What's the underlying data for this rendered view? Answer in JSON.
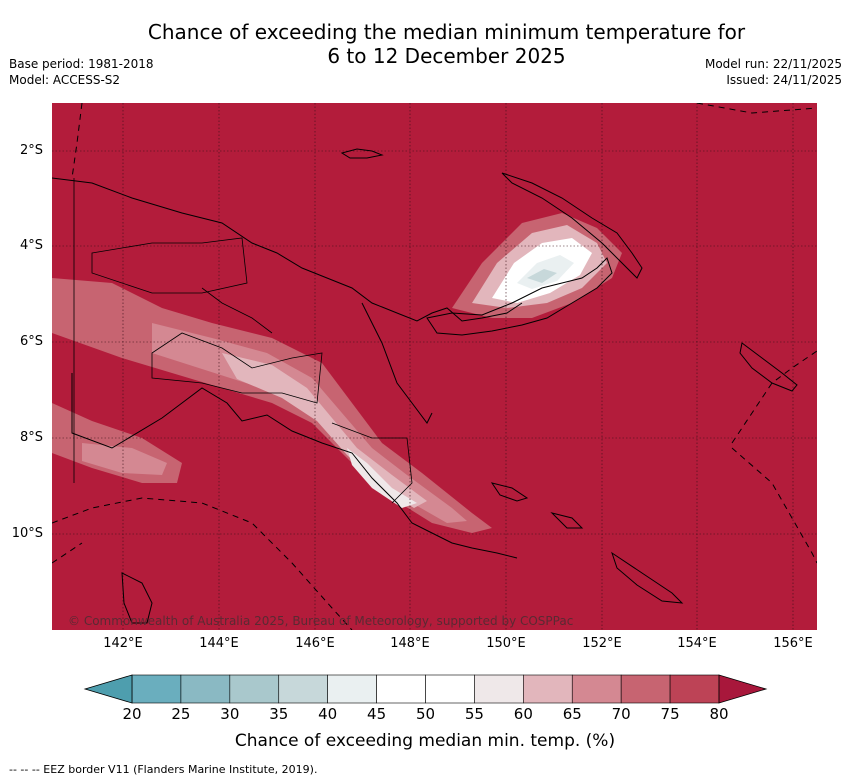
{
  "title_line1": "Chance of exceeding the median minimum temperature for",
  "title_line2": "6 to 12 December 2025",
  "meta_left": {
    "base_period": "Base period: 1981-2018",
    "model": "Model: ACCESS-S2"
  },
  "meta_right": {
    "model_run": "Model run: 22/11/2025",
    "issued": "Issued: 24/11/2025"
  },
  "map": {
    "credit": "© Commonwealth of Australia 2025, Bureau of Meteorology, supported by COSPPac",
    "lat_labels": [
      "2°S",
      "4°S",
      "6°S",
      "8°S",
      "10°S"
    ],
    "lon_labels": [
      "142°E",
      "144°E",
      "146°E",
      "148°E",
      "150°E",
      "152°E",
      "154°E",
      "156°E"
    ]
  },
  "colorbar": {
    "ticks": [
      "20",
      "25",
      "30",
      "35",
      "40",
      "45",
      "50",
      "55",
      "60",
      "65",
      "70",
      "75",
      "80"
    ],
    "colors": [
      "#6aaebe",
      "#8ab9c3",
      "#a9c8cc",
      "#c7d8da",
      "#eaf0f1",
      "#ffffff",
      "#ffffff",
      "#efe8e9",
      "#e2b6bc",
      "#d48892",
      "#c76471",
      "#bd4356"
    ],
    "low_color": "#4e9eae",
    "high_color": "#a8173b",
    "label": "Chance of exceeding median min. temp. (%)"
  },
  "legend": {
    "text": "--  --  -- EEZ border V11 (Flanders Marine Institute, 2019)."
  },
  "colors": {
    "background_field": "#b31c3b",
    "coast": "#000000"
  }
}
